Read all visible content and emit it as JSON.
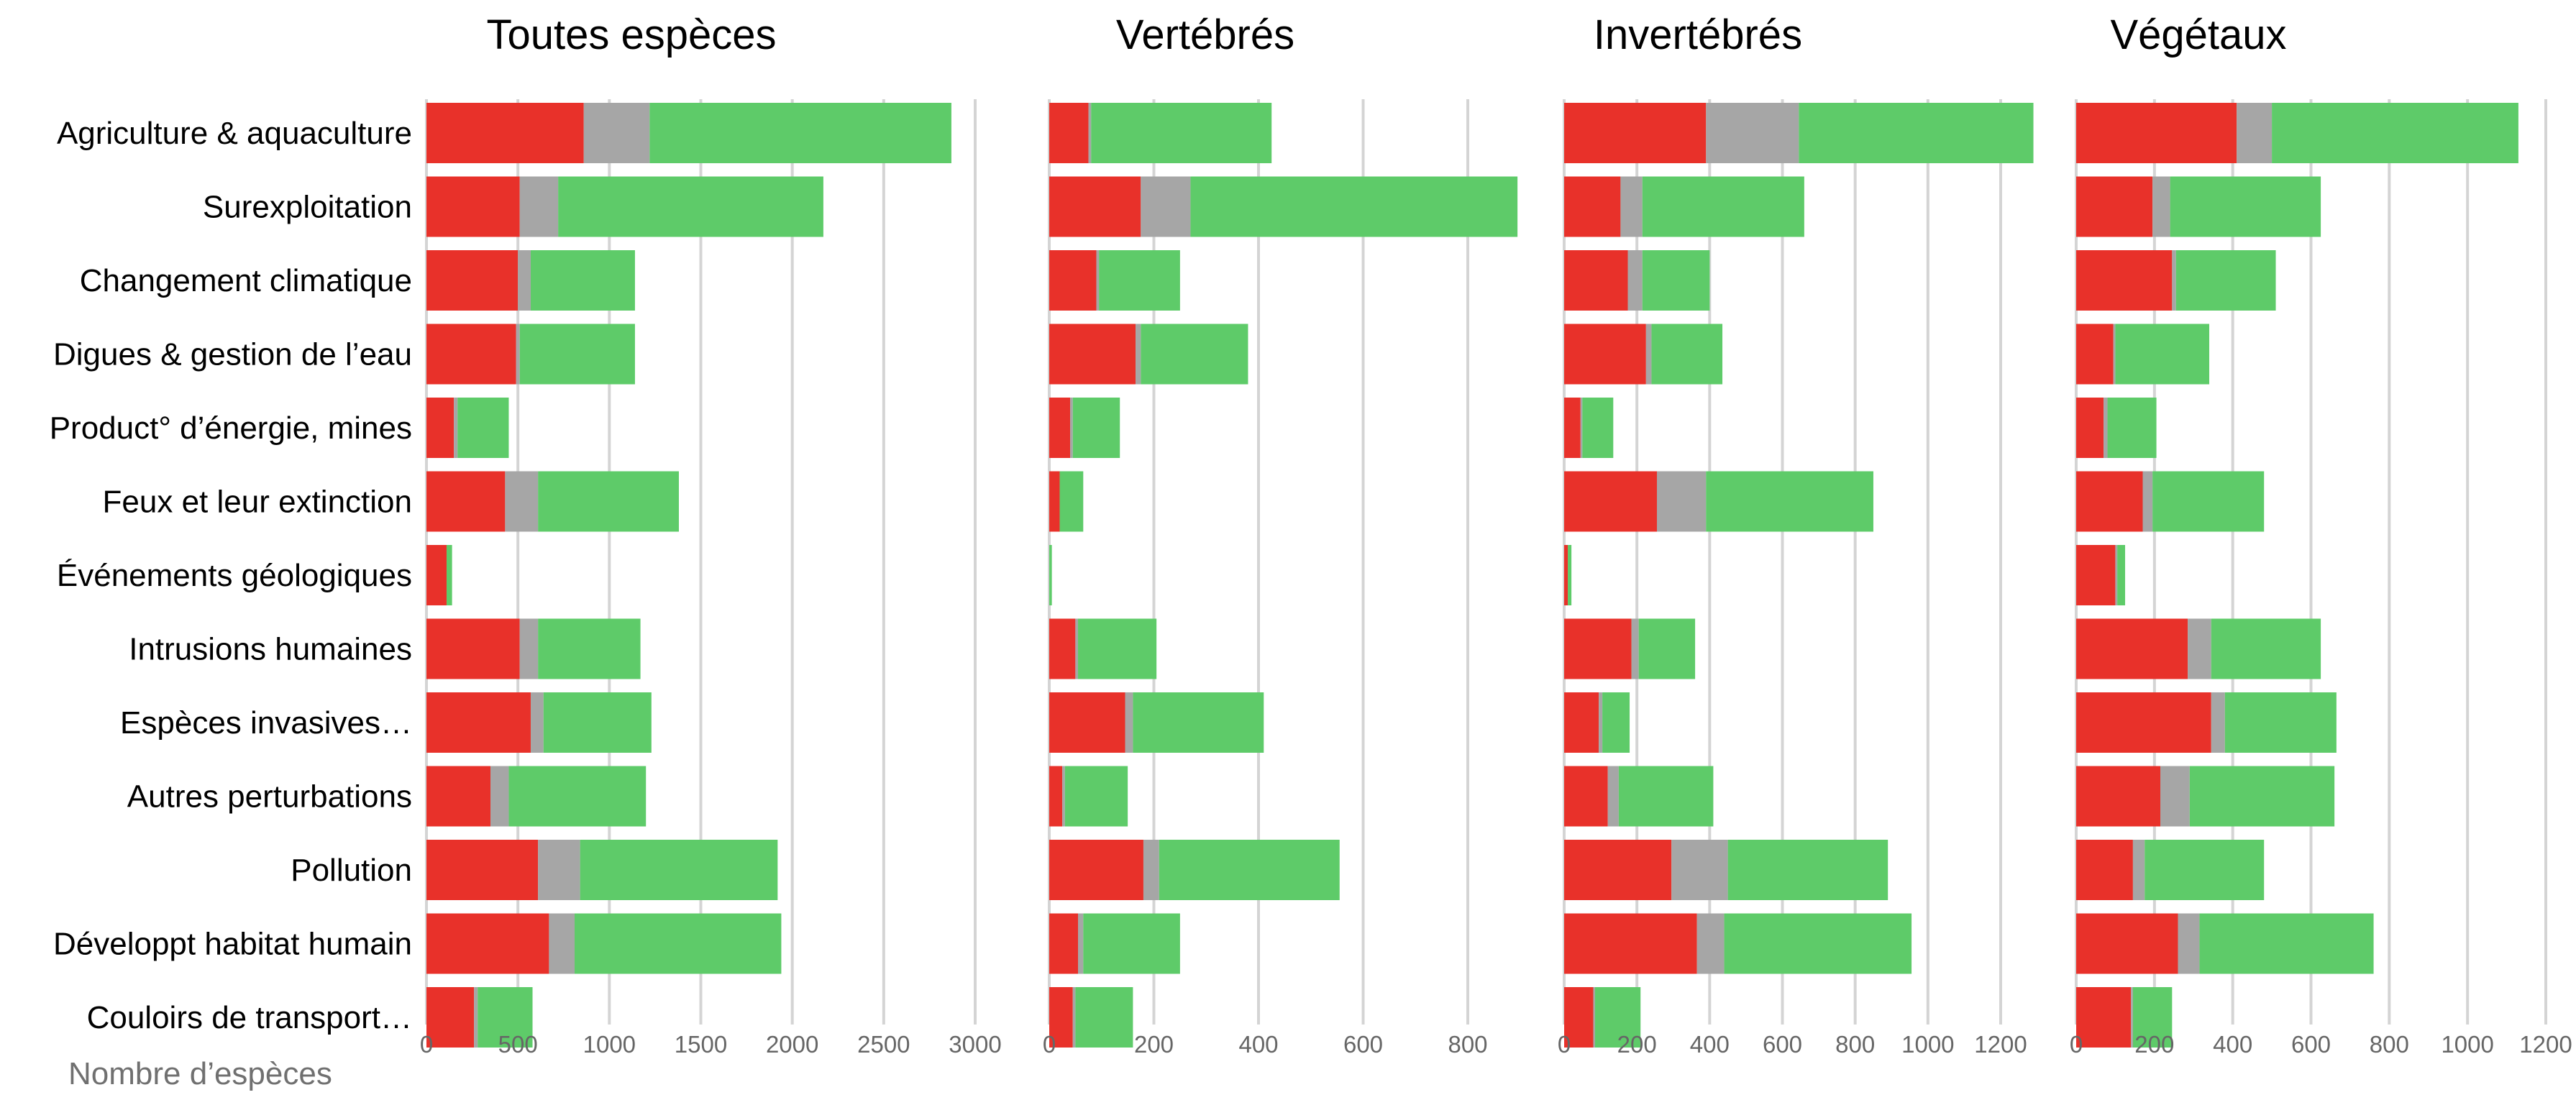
{
  "chart_data": {
    "type": "bar",
    "stacked": true,
    "orientation": "horizontal",
    "xlabel": "Nombre d’espèces",
    "categories": [
      "Agriculture & aquaculture",
      "Surexploitation",
      "Changement climatique",
      "Digues & gestion de l’eau",
      "Product° d’énergie, mines",
      "Feux et leur extinction",
      "Événements géologiques",
      "Intrusions humaines",
      "Espèces invasives…",
      "Autres perturbations",
      "Pollution",
      "Développt habitat humain",
      "Couloirs de transport…"
    ],
    "colors": [
      "#e8312a",
      "#a6a6a6",
      "#5ecb69"
    ],
    "grid": true,
    "panels": [
      {
        "title": "Toutes espèces",
        "xlim": [
          0,
          3000
        ],
        "ticks": [
          0,
          500,
          1000,
          1500,
          2000,
          2500,
          3000
        ],
        "series": [
          {
            "values": [
              860,
              510,
              500,
              490,
              150,
              430,
              110,
              510,
              570,
              350,
              610,
              670,
              260
            ]
          },
          {
            "values": [
              360,
              210,
              70,
              20,
              20,
              180,
              0,
              100,
              70,
              100,
              230,
              140,
              20
            ]
          },
          {
            "values": [
              1650,
              1450,
              570,
              630,
              280,
              770,
              30,
              560,
              590,
              750,
              1080,
              1130,
              300
            ]
          }
        ]
      },
      {
        "title": "Vertébrés",
        "xlim": [
          0,
          900
        ],
        "ticks": [
          0,
          200,
          400,
          600,
          800
        ],
        "series": [
          {
            "values": [
              75,
              175,
              90,
              165,
              40,
              20,
              0,
              50,
              145,
              25,
              180,
              55,
              45
            ]
          },
          {
            "values": [
              5,
              95,
              5,
              10,
              5,
              0,
              0,
              5,
              15,
              5,
              30,
              10,
              5
            ]
          },
          {
            "values": [
              345,
              625,
              155,
              205,
              90,
              45,
              5,
              150,
              250,
              120,
              345,
              185,
              110
            ]
          }
        ]
      },
      {
        "title": "Invertébrés",
        "xlim": [
          0,
          1300
        ],
        "ticks": [
          0,
          200,
          400,
          600,
          800,
          1000,
          1200
        ],
        "series": [
          {
            "values": [
              390,
              155,
              175,
              225,
              45,
              255,
              10,
              185,
              95,
              120,
              295,
              365,
              80
            ]
          },
          {
            "values": [
              255,
              60,
              40,
              15,
              5,
              135,
              0,
              20,
              10,
              30,
              155,
              75,
              5
            ]
          },
          {
            "values": [
              645,
              445,
              185,
              195,
              85,
              460,
              10,
              155,
              75,
              260,
              440,
              515,
              125
            ]
          }
        ]
      },
      {
        "title": "Végétaux",
        "xlim": [
          0,
          1200
        ],
        "ticks": [
          0,
          200,
          400,
          600,
          800,
          1000,
          1200
        ],
        "series": [
          {
            "values": [
              410,
              195,
              245,
              95,
              70,
              170,
              100,
              285,
              345,
              215,
              145,
              260,
              140
            ]
          },
          {
            "values": [
              90,
              45,
              10,
              5,
              10,
              25,
              5,
              60,
              35,
              75,
              30,
              55,
              5
            ]
          },
          {
            "values": [
              630,
              385,
              255,
              240,
              125,
              285,
              20,
              280,
              285,
              370,
              305,
              445,
              100
            ]
          }
        ]
      }
    ]
  }
}
